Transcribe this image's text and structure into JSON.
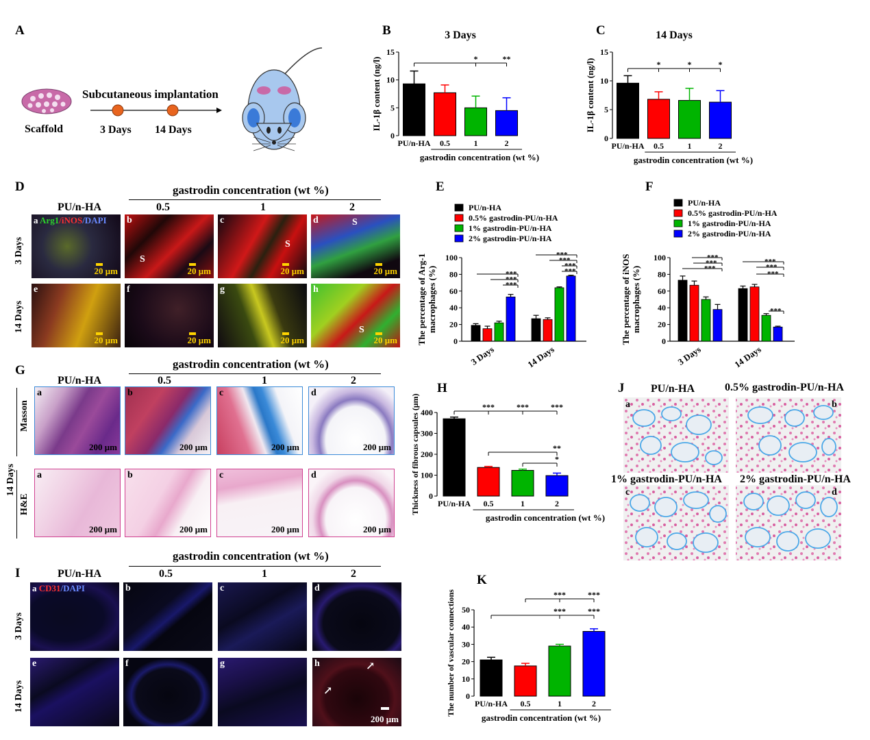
{
  "panels": {
    "A": {
      "label": "A",
      "scaffold": "Scaffold",
      "procedure": "Subcutaneous implantation",
      "day1": "3 Days",
      "day2": "14 Days"
    },
    "D": {
      "label": "D",
      "header": "gastrodin concentration (wt %)",
      "cols": [
        "PU/n-HA",
        "0.5",
        "1",
        "2"
      ],
      "rows": [
        "3 Days",
        "14 Days"
      ],
      "stain": {
        "arg": "Arg1",
        "inos": "/iNOS",
        "dapi": "/DAPI"
      },
      "scale": "20 μm",
      "letters": [
        "a",
        "b",
        "c",
        "d",
        "e",
        "f",
        "g",
        "h"
      ],
      "s": "S"
    },
    "G": {
      "label": "G",
      "header": "gastrodin concentration (wt %)",
      "cols": [
        "PU/n-HA",
        "0.5",
        "1",
        "2"
      ],
      "rows": [
        "Masson",
        "H&E"
      ],
      "time": "14 Days",
      "scale": "200 μm",
      "letters": [
        "a",
        "b",
        "c",
        "d"
      ]
    },
    "I": {
      "label": "I",
      "header": "gastrodin concentration (wt %)",
      "cols": [
        "PU/n-HA",
        "0.5",
        "1",
        "2"
      ],
      "rows": [
        "3 Days",
        "14 Days"
      ],
      "stain": {
        "cd": "CD31",
        "dapi": "/DAPI"
      },
      "scale": "200 μm",
      "letters": [
        "a",
        "b",
        "c",
        "d",
        "e",
        "f",
        "g",
        "h"
      ]
    },
    "J": {
      "label": "J",
      "names": [
        "PU/n-HA",
        "0.5% gastrodin-PU/n-HA",
        "1% gastrodin-PU/n-HA",
        "2% gastrodin-PU/n-HA"
      ],
      "letters": [
        "a",
        "b",
        "c",
        "d"
      ]
    }
  },
  "chart_data": [
    {
      "id": "B",
      "type": "bar",
      "title": "3 Days",
      "ylabel": "IL-1β content (ng/l)",
      "xlabel": "gastrodin concentration (wt %)",
      "categories": [
        "PU/n-HA",
        "0.5",
        "1",
        "2"
      ],
      "values": [
        9.3,
        7.7,
        5.0,
        4.5
      ],
      "errors": [
        2.3,
        1.4,
        2.1,
        2.3
      ],
      "ylim": [
        0,
        15
      ],
      "yticks": [
        0,
        5,
        10,
        15
      ],
      "colors": [
        "#000000",
        "#ff0000",
        "#00b400",
        "#0000ff"
      ],
      "sig": [
        {
          "from": 0,
          "to": 2,
          "label": "*"
        },
        {
          "from": 0,
          "to": 3,
          "label": "**"
        }
      ]
    },
    {
      "id": "C",
      "type": "bar",
      "title": "14 Days",
      "ylabel": "IL-1β content (ng/l)",
      "xlabel": "gastrodin concentration (wt %)",
      "categories": [
        "PU/n-HA",
        "0.5",
        "1",
        "2"
      ],
      "values": [
        9.6,
        6.8,
        6.6,
        6.3
      ],
      "errors": [
        1.3,
        1.3,
        2.1,
        2.0
      ],
      "ylim": [
        0,
        15
      ],
      "yticks": [
        0,
        5,
        10,
        15
      ],
      "colors": [
        "#000000",
        "#ff0000",
        "#00b400",
        "#0000ff"
      ],
      "sig": [
        {
          "from": 0,
          "to": 1,
          "label": "*"
        },
        {
          "from": 0,
          "to": 2,
          "label": "*"
        },
        {
          "from": 0,
          "to": 3,
          "label": "*"
        }
      ]
    },
    {
      "id": "E",
      "type": "bar",
      "ylabel": "The percentage of Arg-1 macrophages (%)",
      "groups": [
        "3 Days",
        "14 Days"
      ],
      "series": [
        {
          "name": "PU/n-HA",
          "color": "#000000",
          "values": [
            19,
            27
          ]
        },
        {
          "name": "0.5% gastrodin-PU/n-HA",
          "color": "#ff0000",
          "values": [
            15,
            26
          ]
        },
        {
          "name": "1%  gastrodin-PU/n-HA",
          "color": "#00b400",
          "values": [
            22,
            64
          ]
        },
        {
          "name": "2%  gastrodin-PU/n-HA",
          "color": "#0000ff",
          "values": [
            53,
            78
          ]
        }
      ],
      "errors": [
        [
          2,
          4
        ],
        [
          3,
          2
        ],
        [
          2,
          1
        ],
        [
          3,
          1
        ]
      ],
      "ylim": [
        0,
        100
      ],
      "yticks": [
        0,
        20,
        40,
        60,
        80,
        100
      ],
      "sig_label": "***"
    },
    {
      "id": "F",
      "type": "bar",
      "ylabel": "The percentage of iNOS macrophages (%)",
      "groups": [
        "3 Days",
        "14 Days"
      ],
      "series": [
        {
          "name": "PU/n-HA",
          "color": "#000000",
          "values": [
            73,
            63
          ]
        },
        {
          "name": "0.5% gastrodin-PU/n-HA",
          "color": "#ff0000",
          "values": [
            67,
            65
          ]
        },
        {
          "name": "1%  gastrodin-PU/n-HA",
          "color": "#00b400",
          "values": [
            50,
            31
          ]
        },
        {
          "name": "2%  gastrodin-PU/n-HA",
          "color": "#0000ff",
          "values": [
            38,
            17
          ]
        }
      ],
      "errors": [
        [
          5,
          3
        ],
        [
          5,
          3
        ],
        [
          3,
          2
        ],
        [
          6,
          1
        ]
      ],
      "ylim": [
        0,
        100
      ],
      "yticks": [
        0,
        20,
        40,
        60,
        80,
        100
      ],
      "sig_label": "***"
    },
    {
      "id": "H",
      "type": "bar",
      "ylabel": "Thickness of fibrous capsules (μm)",
      "xlabel": "gastrodin concentration (wt %)",
      "categories": [
        "PU/n-HA",
        "0.5",
        "1",
        "2"
      ],
      "values": [
        370,
        137,
        123,
        98
      ],
      "errors": [
        8,
        5,
        6,
        12
      ],
      "ylim": [
        0,
        400
      ],
      "yticks": [
        0,
        100,
        200,
        300,
        400
      ],
      "colors": [
        "#000000",
        "#ff0000",
        "#00b400",
        "#0000ff"
      ],
      "sig": [
        {
          "from": 0,
          "to": 1,
          "label": "***"
        },
        {
          "from": 0,
          "to": 2,
          "label": "***"
        },
        {
          "from": 0,
          "to": 3,
          "label": "***"
        },
        {
          "from": 1,
          "to": 3,
          "label": "**"
        },
        {
          "from": 2,
          "to": 3,
          "label": "*"
        }
      ]
    },
    {
      "id": "K",
      "type": "bar",
      "ylabel": "The number of vascular connections",
      "xlabel": "gastrodin concentration (wt %)",
      "categories": [
        "PU/n-HA",
        "0.5",
        "1",
        "2"
      ],
      "values": [
        21,
        17.5,
        29,
        37.5
      ],
      "errors": [
        1.5,
        1.5,
        1,
        1.5
      ],
      "ylim": [
        0,
        50
      ],
      "yticks": [
        0,
        10,
        20,
        30,
        40,
        50
      ],
      "colors": [
        "#000000",
        "#ff0000",
        "#00b400",
        "#0000ff"
      ],
      "sig": [
        {
          "from": 0,
          "to": 2,
          "label": "***"
        },
        {
          "from": 0,
          "to": 3,
          "label": "***"
        },
        {
          "from": 1,
          "to": 2,
          "label": "***"
        },
        {
          "from": 1,
          "to": 3,
          "label": "***"
        }
      ]
    }
  ]
}
